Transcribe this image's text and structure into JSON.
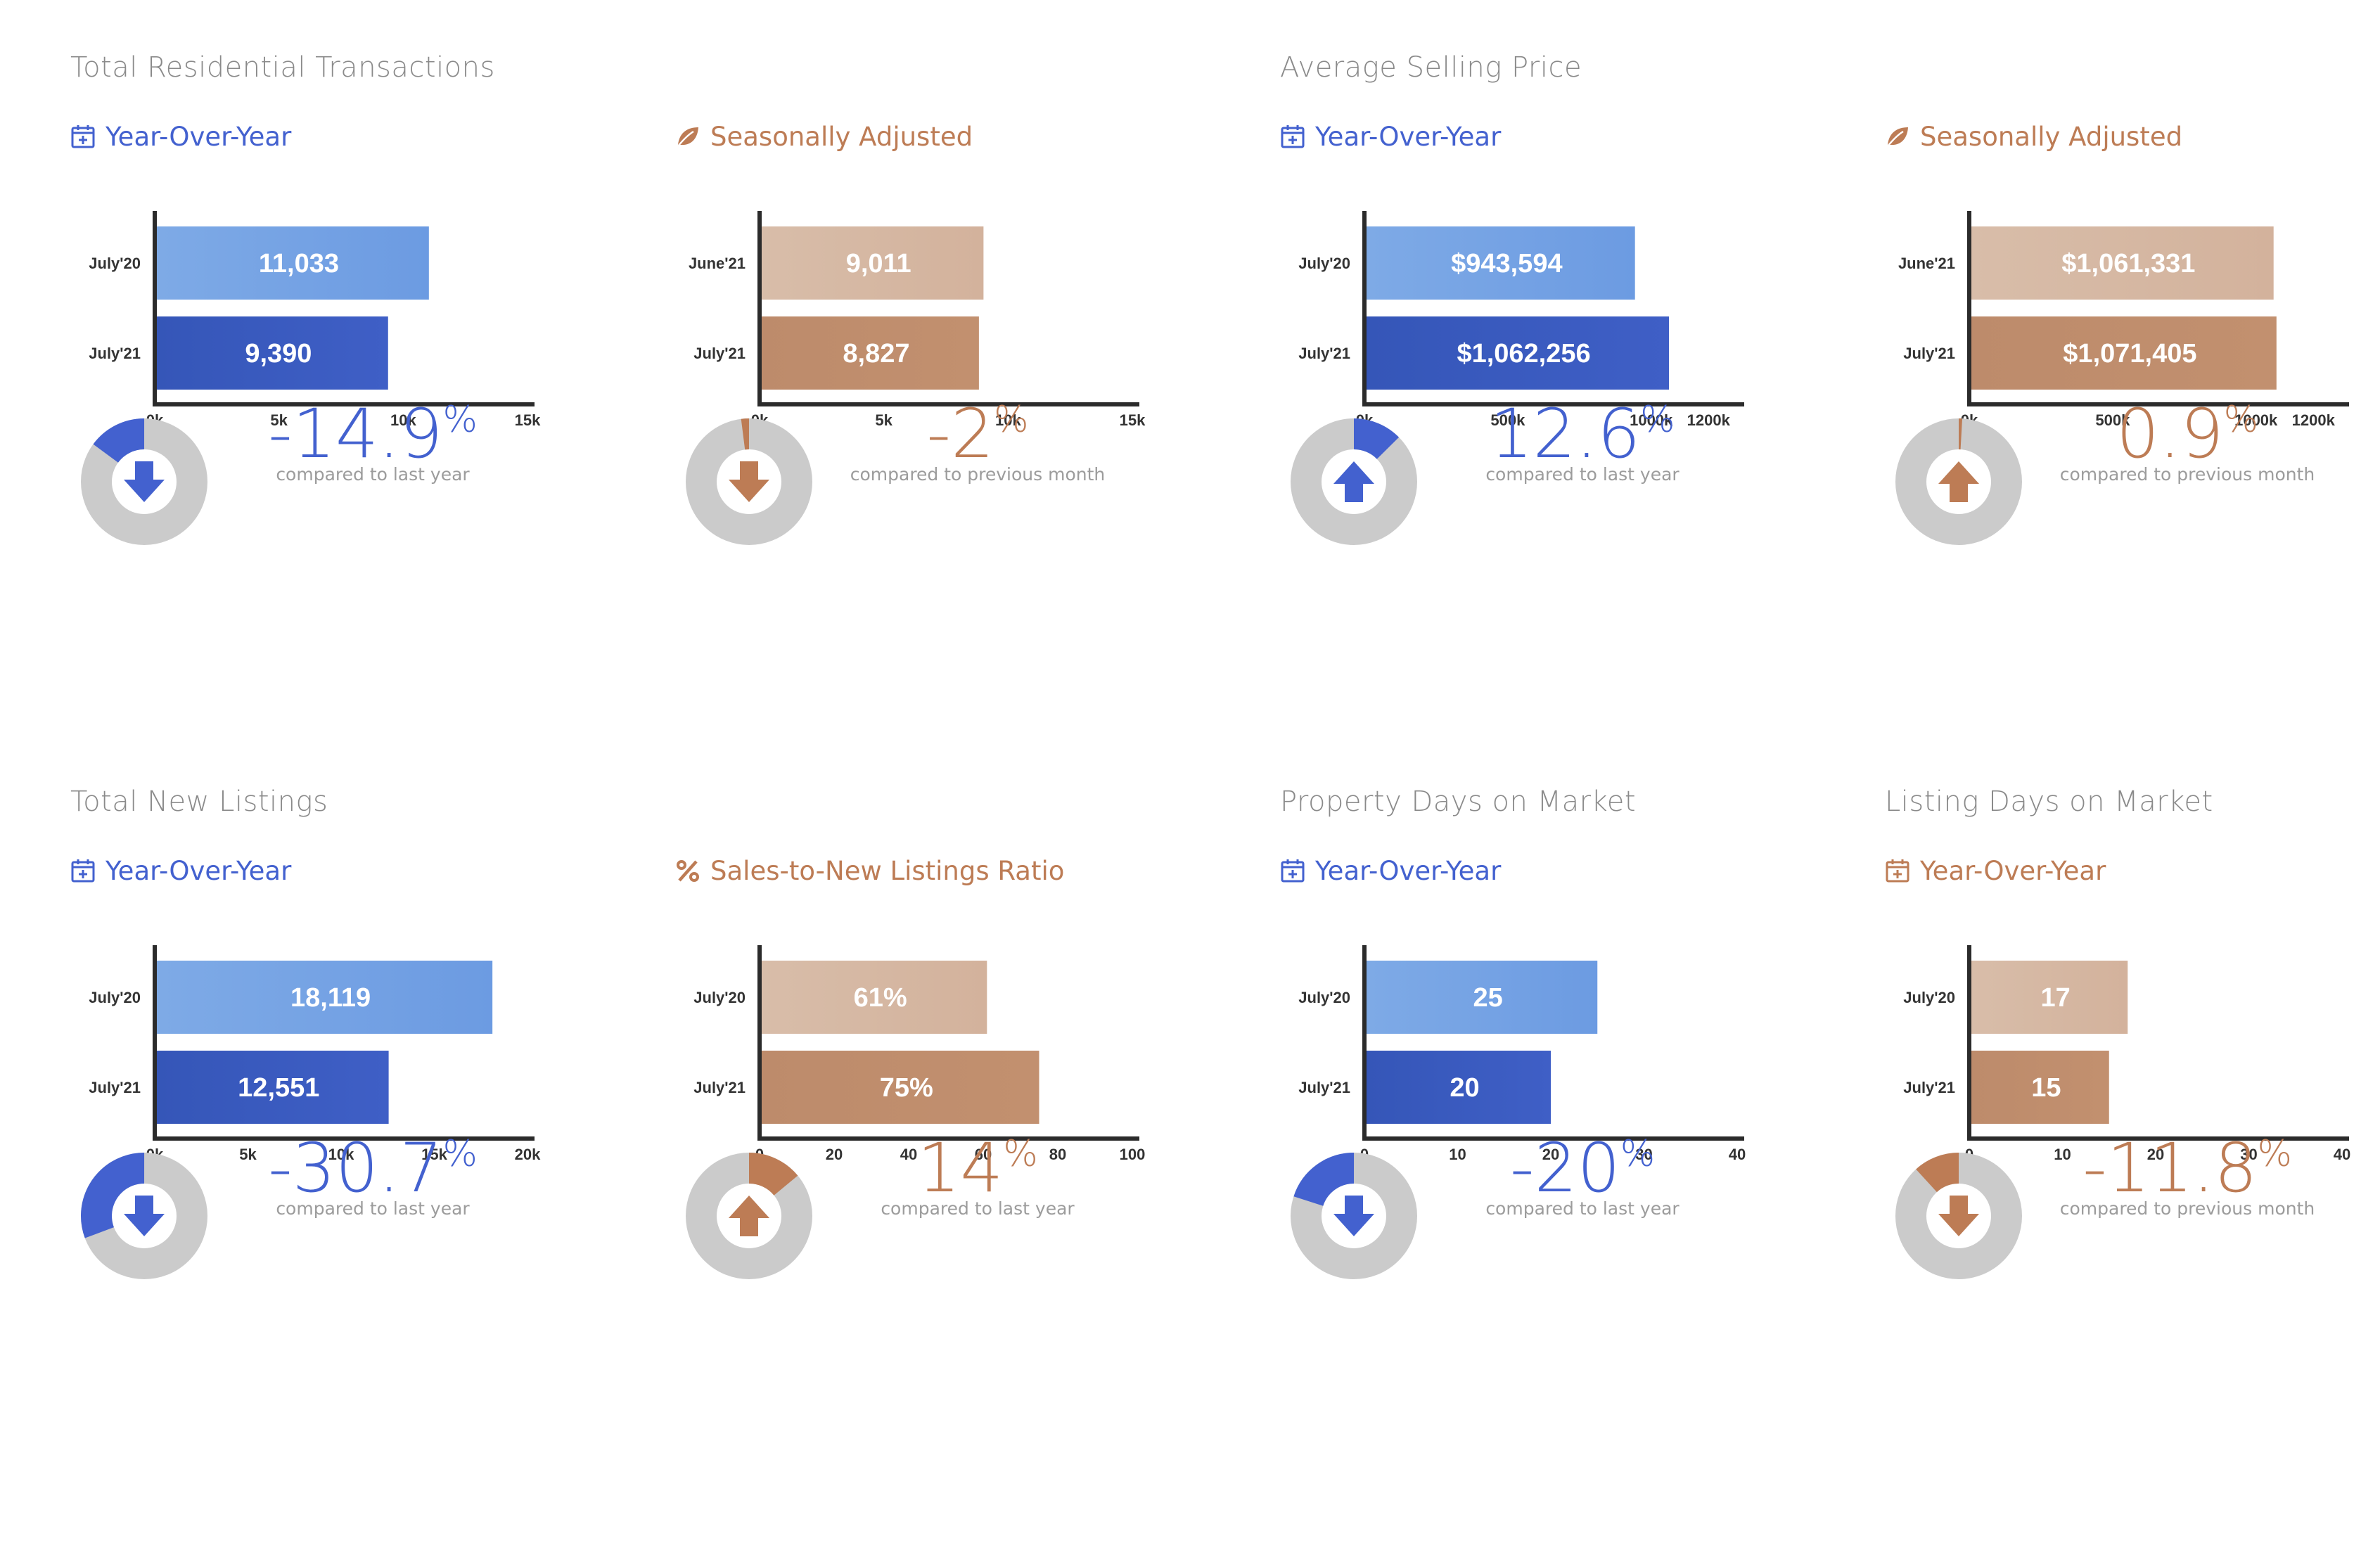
{
  "section_titles": {
    "total_residential_transactions": "Total Residential Transactions",
    "average_selling_price": "Average Selling Price",
    "total_new_listings": "Total New Listings",
    "property_days_on_market": "Property Days on Market",
    "listing_days_on_market": "Listing Days on Market"
  },
  "colors": {
    "blue_accent": "#4361cf",
    "brown_accent": "#bd7c55",
    "blue_light_bar": "#7eaae6",
    "blue_dark_bar": "#3556b8",
    "brown_light_bar": "#d8bda9",
    "brown_dark_bar": "#bd8b6b",
    "donut_track": "#cbcbcb"
  },
  "panels": [
    {
      "subtitle": "Year-Over-Year",
      "icon": "calendar-icon",
      "theme": "blue",
      "change": {
        "value": "-14.9",
        "symbol": "%",
        "caption": "compared to last year",
        "direction": "down",
        "fraction": 0.149
      }
    },
    {
      "subtitle": "Seasonally Adjusted",
      "icon": "leaf-icon",
      "theme": "brown",
      "change": {
        "value": "-2",
        "symbol": "%",
        "caption": "compared to previous month",
        "direction": "down",
        "fraction": 0.02
      }
    },
    {
      "subtitle": "Year-Over-Year",
      "icon": "calendar-icon",
      "theme": "blue",
      "change": {
        "value": "12.6",
        "symbol": "%",
        "caption": "compared to last year",
        "direction": "up",
        "fraction": 0.126
      }
    },
    {
      "subtitle": "Seasonally Adjusted",
      "icon": "leaf-icon",
      "theme": "brown",
      "change": {
        "value": "0.9",
        "symbol": "%",
        "caption": "compared to previous month",
        "direction": "up",
        "fraction": 0.009
      }
    },
    {
      "subtitle": "Year-Over-Year",
      "icon": "calendar-icon",
      "theme": "blue",
      "change": {
        "value": "-30.7",
        "symbol": "%",
        "caption": "compared to last year",
        "direction": "down",
        "fraction": 0.307
      }
    },
    {
      "subtitle": "Sales-to-New Listings Ratio",
      "icon": "percent-icon",
      "theme": "brown",
      "change": {
        "value": "14",
        "symbol": "%",
        "caption": "compared to last year",
        "direction": "up",
        "fraction": 0.14
      }
    },
    {
      "subtitle": "Year-Over-Year",
      "icon": "calendar-icon",
      "theme": "blue",
      "change": {
        "value": "-20",
        "symbol": "%",
        "caption": "compared to last year",
        "direction": "down",
        "fraction": 0.2
      }
    },
    {
      "subtitle": "Year-Over-Year",
      "icon": "calendar-icon",
      "theme": "brown",
      "change": {
        "value": "-11.8",
        "symbol": "%",
        "caption": "compared to previous month",
        "direction": "down",
        "fraction": 0.118
      }
    }
  ],
  "chart_data": [
    {
      "type": "bar",
      "orientation": "horizontal",
      "categories": [
        "July'20",
        "July'21"
      ],
      "values": [
        11033,
        9390
      ],
      "labels": [
        "11,033",
        "9,390"
      ],
      "xlim": [
        0,
        15000
      ],
      "ticks": [
        0,
        5000,
        10000,
        15000
      ],
      "tick_labels": [
        "0k",
        "5k",
        "10k",
        "15k"
      ]
    },
    {
      "type": "bar",
      "orientation": "horizontal",
      "categories": [
        "June'21",
        "July'21"
      ],
      "values": [
        9011,
        8827
      ],
      "labels": [
        "9,011",
        "8,827"
      ],
      "xlim": [
        0,
        15000
      ],
      "ticks": [
        0,
        5000,
        10000,
        15000
      ],
      "tick_labels": [
        "0k",
        "5k",
        "10k",
        "15k"
      ]
    },
    {
      "type": "bar",
      "orientation": "horizontal",
      "categories": [
        "July'20",
        "July'21"
      ],
      "values": [
        943594,
        1062256
      ],
      "labels": [
        "$943,594",
        "$1,062,256"
      ],
      "xlim": [
        0,
        1300000
      ],
      "ticks": [
        0,
        500000,
        1000000,
        1200000
      ],
      "tick_labels": [
        "0k",
        "500k",
        "1000k",
        "1200k"
      ]
    },
    {
      "type": "bar",
      "orientation": "horizontal",
      "categories": [
        "June'21",
        "July'21"
      ],
      "values": [
        1061331,
        1071405
      ],
      "labels": [
        "$1,061,331",
        "$1,071,405"
      ],
      "xlim": [
        0,
        1300000
      ],
      "ticks": [
        0,
        500000,
        1000000,
        1200000
      ],
      "tick_labels": [
        "0k",
        "500k",
        "1000k",
        "1200k"
      ]
    },
    {
      "type": "bar",
      "orientation": "horizontal",
      "categories": [
        "July'20",
        "July'21"
      ],
      "values": [
        18119,
        12551
      ],
      "labels": [
        "18,119",
        "12,551"
      ],
      "xlim": [
        0,
        20000
      ],
      "ticks": [
        0,
        5000,
        10000,
        15000,
        20000
      ],
      "tick_labels": [
        "0k",
        "5k",
        "10k",
        "15k",
        "20k"
      ]
    },
    {
      "type": "bar",
      "orientation": "horizontal",
      "categories": [
        "July'20",
        "July'21"
      ],
      "values": [
        61,
        75
      ],
      "labels": [
        "61%",
        "75%"
      ],
      "xlim": [
        0,
        100
      ],
      "ticks": [
        0,
        20,
        40,
        60,
        80,
        100
      ],
      "tick_labels": [
        "0",
        "20",
        "40",
        "60",
        "80",
        "100"
      ]
    },
    {
      "type": "bar",
      "orientation": "horizontal",
      "categories": [
        "July'20",
        "July'21"
      ],
      "values": [
        25,
        20
      ],
      "labels": [
        "25",
        "20"
      ],
      "xlim": [
        0,
        40
      ],
      "ticks": [
        0,
        10,
        20,
        30,
        40
      ],
      "tick_labels": [
        "0",
        "10",
        "20",
        "30",
        "40"
      ]
    },
    {
      "type": "bar",
      "orientation": "horizontal",
      "categories": [
        "July'20",
        "July'21"
      ],
      "values": [
        17,
        15
      ],
      "labels": [
        "17",
        "15"
      ],
      "xlim": [
        0,
        40
      ],
      "ticks": [
        0,
        10,
        20,
        30,
        40
      ],
      "tick_labels": [
        "0",
        "10",
        "20",
        "30",
        "40"
      ]
    }
  ]
}
